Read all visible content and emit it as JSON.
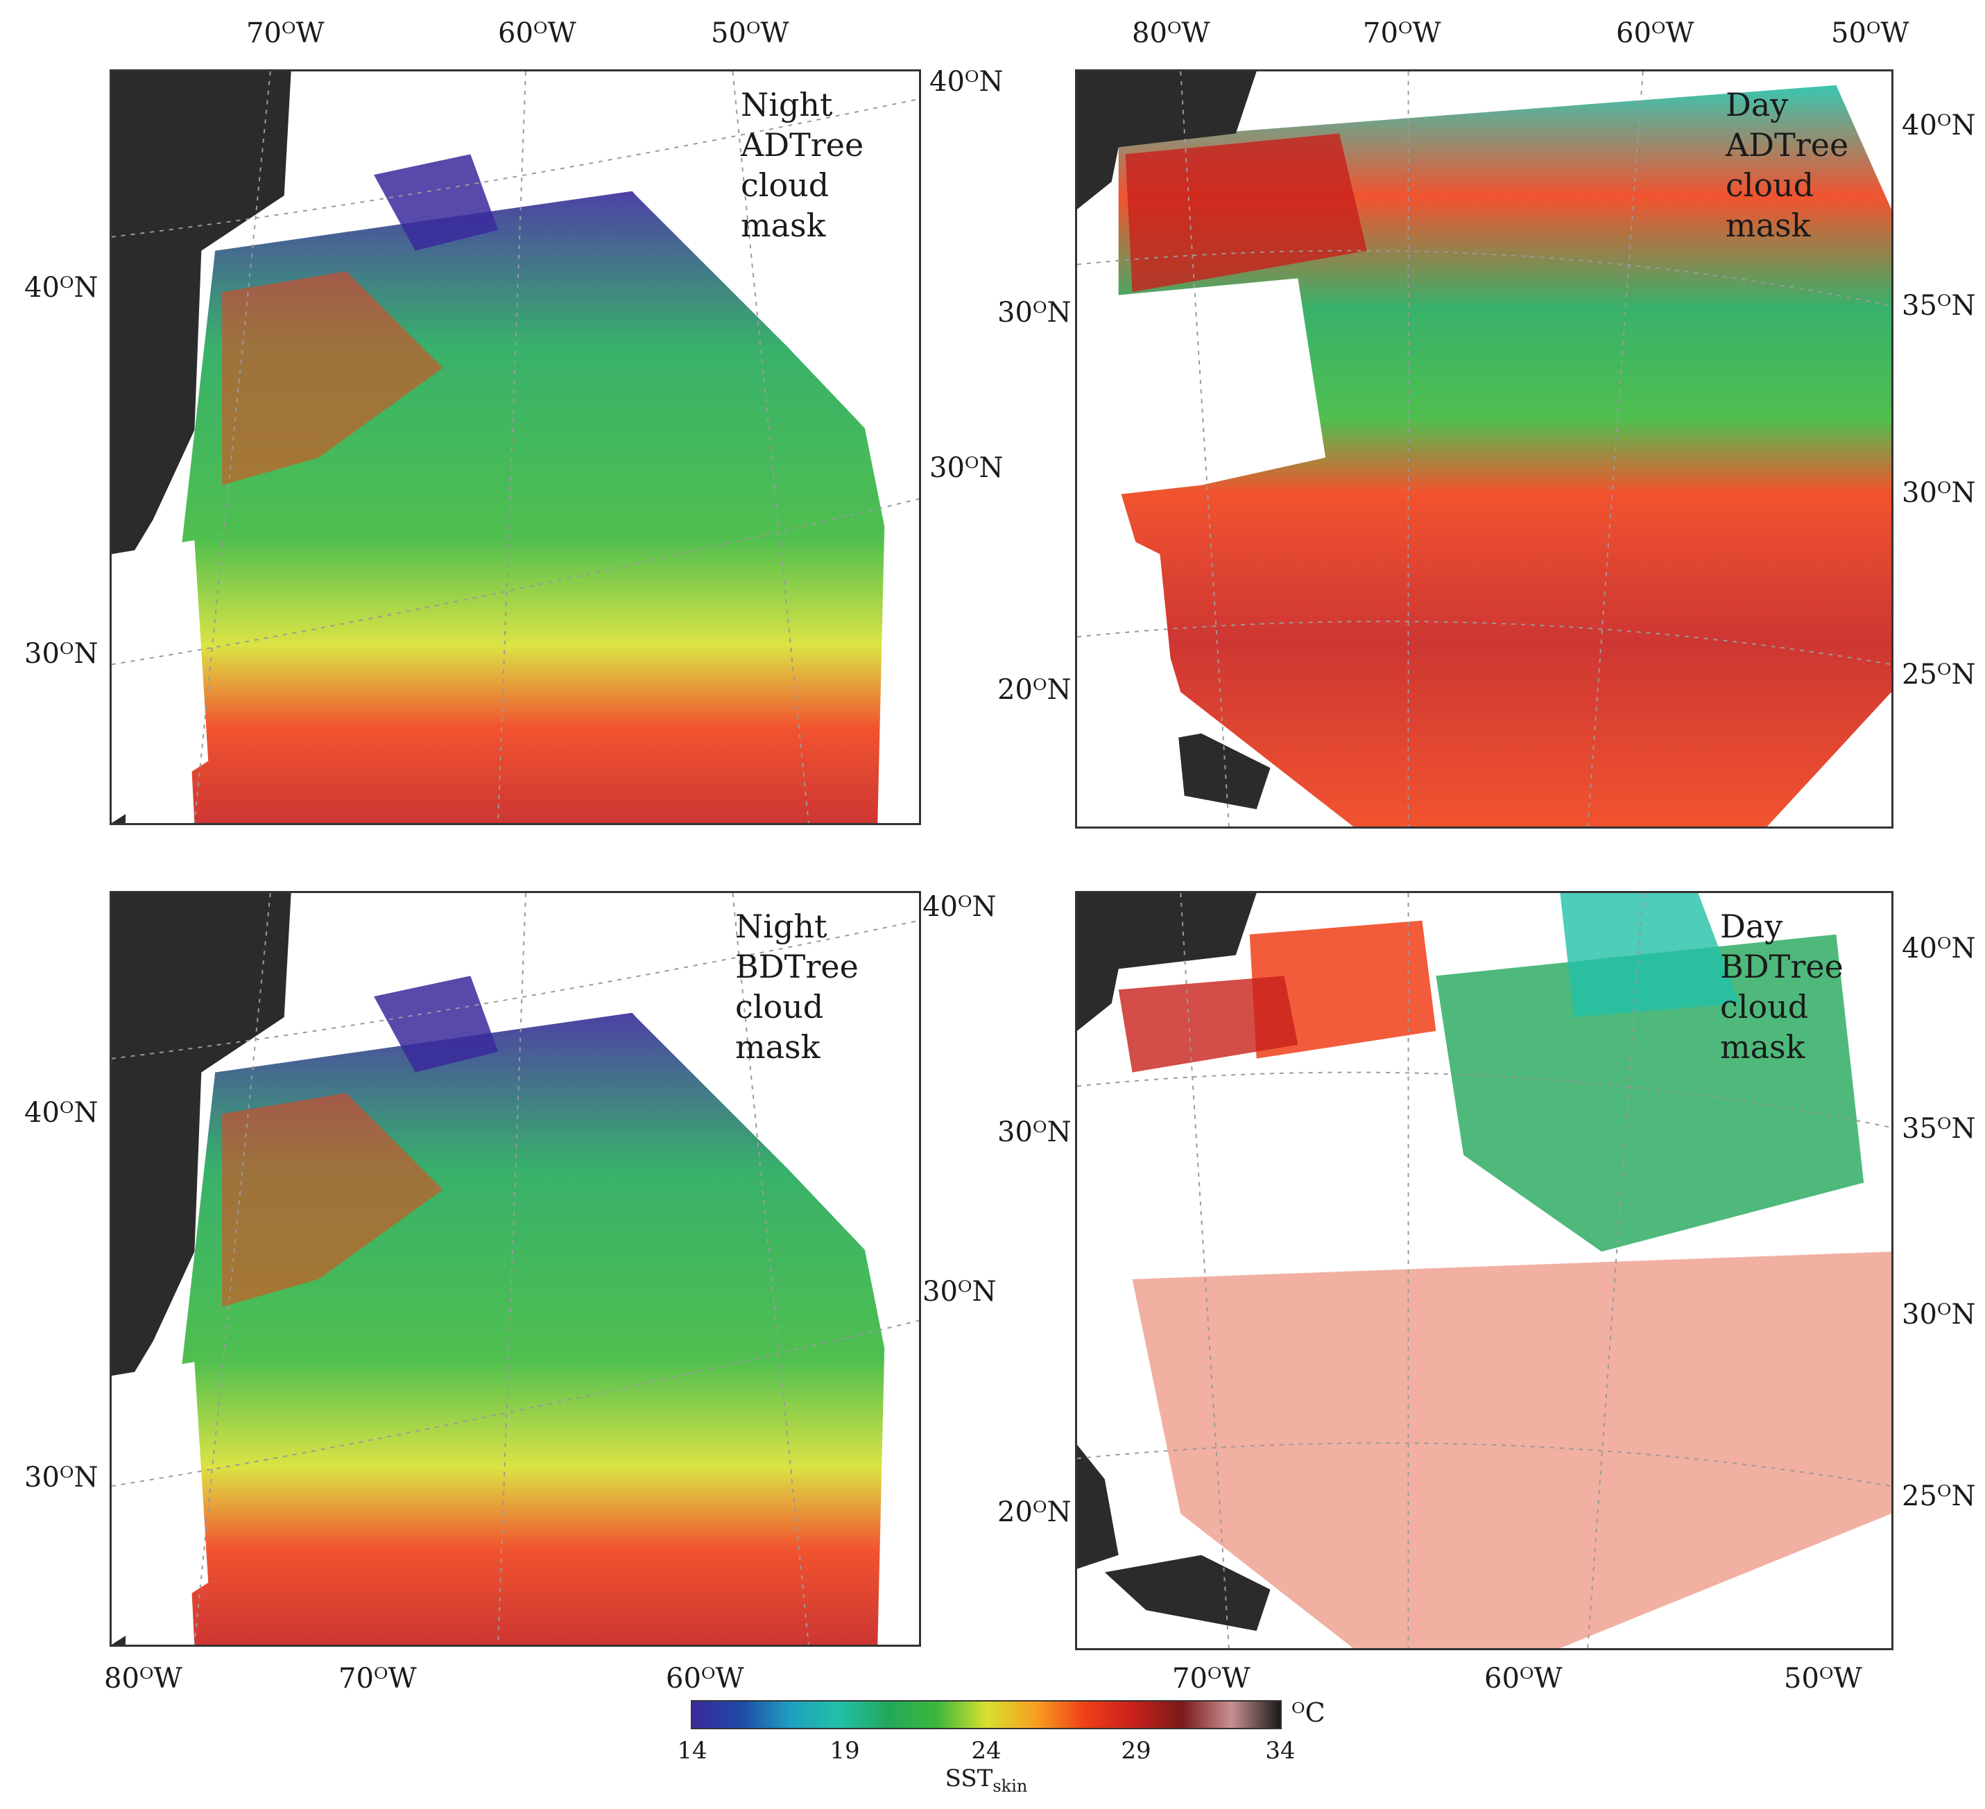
{
  "panels": [
    {
      "id": "night-adtree",
      "label_lines": [
        "Night",
        "ADTree",
        "cloud mask"
      ],
      "top_lon": [
        "70ᴼW",
        "60ᴼW",
        "50ᴼW"
      ],
      "left_lat": [
        "40ᴼN",
        "30ᴼN"
      ],
      "right_lat": [
        "40ᴼN",
        "30ᴼN"
      ],
      "bottom_lon": []
    },
    {
      "id": "day-adtree",
      "label_lines": [
        "Day",
        "ADTree",
        "cloud mask"
      ],
      "top_lon": [
        "80ᴼW",
        "70ᴼW",
        "60ᴼW",
        "50ᴼW"
      ],
      "left_lat": [
        "30ᴼN",
        "20ᴼN"
      ],
      "right_lat": [
        "40ᴼN",
        "35ᴼN",
        "30ᴼN",
        "25ᴼN"
      ],
      "bottom_lon": []
    },
    {
      "id": "night-bdtree",
      "label_lines": [
        "Night",
        "BDTree",
        "cloud mask"
      ],
      "top_lon": [],
      "left_lat": [
        "40ᴼN",
        "30ᴼN"
      ],
      "right_lat": [
        "40ᴼN",
        "30ᴼN"
      ],
      "bottom_lon": [
        "80ᴼW",
        "70ᴼW",
        "60ᴼW"
      ]
    },
    {
      "id": "day-bdtree",
      "label_lines": [
        "Day",
        "BDTree",
        "cloud mask"
      ],
      "top_lon": [],
      "left_lat": [
        "30ᴼN",
        "20ᴼN"
      ],
      "right_lat": [
        "40ᴼN",
        "35ᴼN",
        "30ᴼN",
        "25ᴼN"
      ],
      "bottom_lon": [
        "70ᴼW",
        "60ᴼW",
        "50ᴼW"
      ]
    }
  ],
  "colorbar": {
    "ticks": [
      "14",
      "19",
      "24",
      "29",
      "34"
    ],
    "unit": "ᴼC",
    "title": "SST",
    "title_sub": "skin",
    "colors": [
      "#3a2a9c",
      "#1e4aa8",
      "#1f9fc0",
      "#22c0a8",
      "#22a85a",
      "#3cb83c",
      "#d8e030",
      "#f7a020",
      "#f04018",
      "#c8201c",
      "#7a1a1a",
      "#c89090",
      "#1a1a1a"
    ]
  },
  "map_colors": {
    "land": "#2b2b2b",
    "cloud": "#ffffff",
    "grid": "#9a9a9a"
  }
}
